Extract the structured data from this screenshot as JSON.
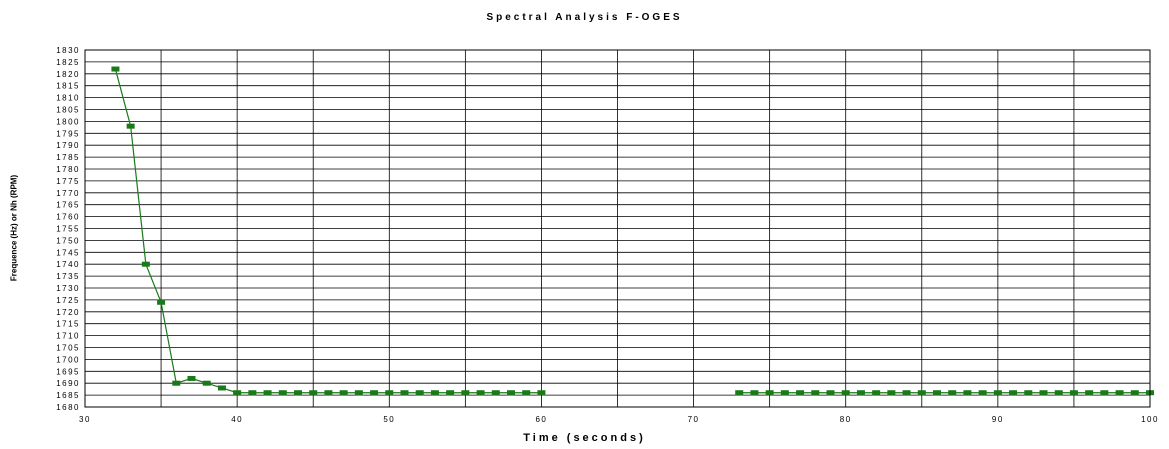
{
  "chart_data": {
    "type": "line",
    "title": "Spectral Analysis F-OGES",
    "xlabel": "Time (seconds)",
    "ylabel": "Frequence (Hz) or Nh (RPM)",
    "xlim": [
      30,
      100
    ],
    "ylim": [
      1680,
      1830
    ],
    "x_ticks": [
      30,
      40,
      50,
      60,
      70,
      80,
      90,
      100
    ],
    "y_ticks": [
      1680,
      1685,
      1690,
      1695,
      1700,
      1705,
      1710,
      1715,
      1720,
      1725,
      1730,
      1735,
      1740,
      1745,
      1750,
      1755,
      1760,
      1765,
      1770,
      1775,
      1780,
      1785,
      1790,
      1795,
      1800,
      1805,
      1810,
      1815,
      1820,
      1825,
      1830
    ],
    "x_minor_gridlines": [
      35,
      45,
      55,
      65,
      75,
      85,
      95
    ],
    "grid": true,
    "legend": "none",
    "color": "#1a7a1a",
    "series": [
      {
        "segments": [
          {
            "x": [
              32,
              33,
              34,
              35,
              36,
              37,
              38,
              39,
              40,
              41,
              42,
              43,
              44,
              45,
              46,
              47,
              48,
              49,
              50,
              51,
              52,
              53,
              54,
              55,
              56,
              57,
              58,
              59,
              60
            ],
            "y": [
              1822,
              1798,
              1740,
              1724,
              1690,
              1692,
              1690,
              1688,
              1686,
              1686,
              1686,
              1686,
              1686,
              1686,
              1686,
              1686,
              1686,
              1686,
              1686,
              1686,
              1686,
              1686,
              1686,
              1686,
              1686,
              1686,
              1686,
              1686,
              1686
            ]
          },
          {
            "x": [
              73,
              74,
              75,
              76,
              77,
              78,
              79,
              80,
              81,
              82,
              83,
              84,
              85,
              86,
              87,
              88,
              89,
              90,
              91,
              92,
              93,
              94,
              95,
              96,
              97,
              98,
              99,
              100
            ],
            "y": [
              1686,
              1686,
              1686,
              1686,
              1686,
              1686,
              1686,
              1686,
              1686,
              1686,
              1686,
              1686,
              1686,
              1686,
              1686,
              1686,
              1686,
              1686,
              1686,
              1686,
              1686,
              1686,
              1686,
              1686,
              1686,
              1686,
              1686,
              1686
            ]
          }
        ]
      }
    ]
  }
}
